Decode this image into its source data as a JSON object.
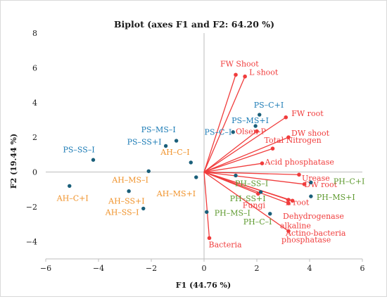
{
  "chart_data": {
    "type": "scatter",
    "title": "Biplot (axes F1 and F2: 64.20 %)",
    "xlabel": "F1 (44.76 %)",
    "ylabel": "F2 (19.44 %)",
    "xlim": [
      -6,
      6
    ],
    "ylim": [
      -5,
      8
    ],
    "x_ticks": [
      "−6",
      "−4",
      "−2",
      "0",
      "2",
      "4",
      "6"
    ],
    "y_ticks": [
      "−4",
      "−2",
      "0",
      "2",
      "4",
      "6",
      "8"
    ],
    "grid": false,
    "colors": {
      "variables": "#f03c3c",
      "blue_obs": "#1b7bb5",
      "orange_obs": "#f0922a",
      "green_obs": "#5e9a2f",
      "point": "#1a5f7a"
    },
    "variables": [
      {
        "label": "FW Shoot",
        "x": 1.2,
        "y": 5.6
      },
      {
        "label": "L shoot",
        "x": 1.55,
        "y": 5.5
      },
      {
        "label": "FW root",
        "x": 3.1,
        "y": 3.15
      },
      {
        "label": "Olsen-P",
        "x": 2.0,
        "y": 2.35
      },
      {
        "label": "DW shoot",
        "x": 3.2,
        "y": 2.0
      },
      {
        "label": "Total Nitrogen",
        "x": 2.6,
        "y": 1.35
      },
      {
        "label": "Acid phosphatase",
        "x": 2.2,
        "y": 0.5
      },
      {
        "label": "Urease",
        "x": 3.6,
        "y": -0.15
      },
      {
        "label": "DW root",
        "x": 3.8,
        "y": -0.7
      },
      {
        "label": "L root",
        "x": 3.35,
        "y": -1.65
      },
      {
        "label": "Fungi",
        "x": 2.05,
        "y": -1.25
      },
      {
        "label": "Dehydrogenase",
        "x": 3.2,
        "y": -1.8
      },
      {
        "label": "Actino-bacteria",
        "x": 3.2,
        "y": -1.6
      },
      {
        "label": "alkaline phosphatase",
        "x": 3.2,
        "y": -3.4
      },
      {
        "label": "Bacteria",
        "x": 0.2,
        "y": -3.8
      }
    ],
    "observations": [
      {
        "label": "PS–C+I",
        "x": 2.1,
        "y": 3.3,
        "group": "blue"
      },
      {
        "label": "PS–MS+I",
        "x": 1.95,
        "y": 2.65,
        "group": "blue"
      },
      {
        "label": "PS–C–I",
        "x": 1.1,
        "y": 2.3,
        "group": "blue"
      },
      {
        "label": "PS–MS–I",
        "x": -1.05,
        "y": 1.8,
        "group": "blue"
      },
      {
        "label": "PS–SS+I",
        "x": -1.45,
        "y": 1.5,
        "group": "blue"
      },
      {
        "label": "PS–SS–I",
        "x": -4.2,
        "y": 0.7,
        "group": "blue"
      },
      {
        "label": "AH–C–I",
        "x": -0.5,
        "y": 0.55,
        "group": "orange"
      },
      {
        "label": "AH–MS–I",
        "x": -2.1,
        "y": 0.05,
        "group": "orange"
      },
      {
        "label": "AH–MS+I",
        "x": -0.3,
        "y": -0.3,
        "group": "orange"
      },
      {
        "label": "AH–C+I",
        "x": -5.1,
        "y": -0.8,
        "group": "orange"
      },
      {
        "label": "AH–SS+I",
        "x": -2.85,
        "y": -1.1,
        "group": "orange"
      },
      {
        "label": "AH–SS–I",
        "x": -2.3,
        "y": -2.1,
        "group": "orange"
      },
      {
        "label": "PH–SS–I",
        "x": 1.2,
        "y": -0.2,
        "group": "green"
      },
      {
        "label": "PH–SS+I",
        "x": 2.15,
        "y": -1.15,
        "group": "green"
      },
      {
        "label": "PH–C+I",
        "x": 4.05,
        "y": -0.6,
        "group": "green"
      },
      {
        "label": "PH–MS+I",
        "x": 4.05,
        "y": -1.4,
        "group": "green"
      },
      {
        "label": "PH–MS–I",
        "x": 0.1,
        "y": -2.3,
        "group": "green"
      },
      {
        "label": "PH–C–I",
        "x": 2.5,
        "y": -2.4,
        "group": "green"
      }
    ]
  }
}
